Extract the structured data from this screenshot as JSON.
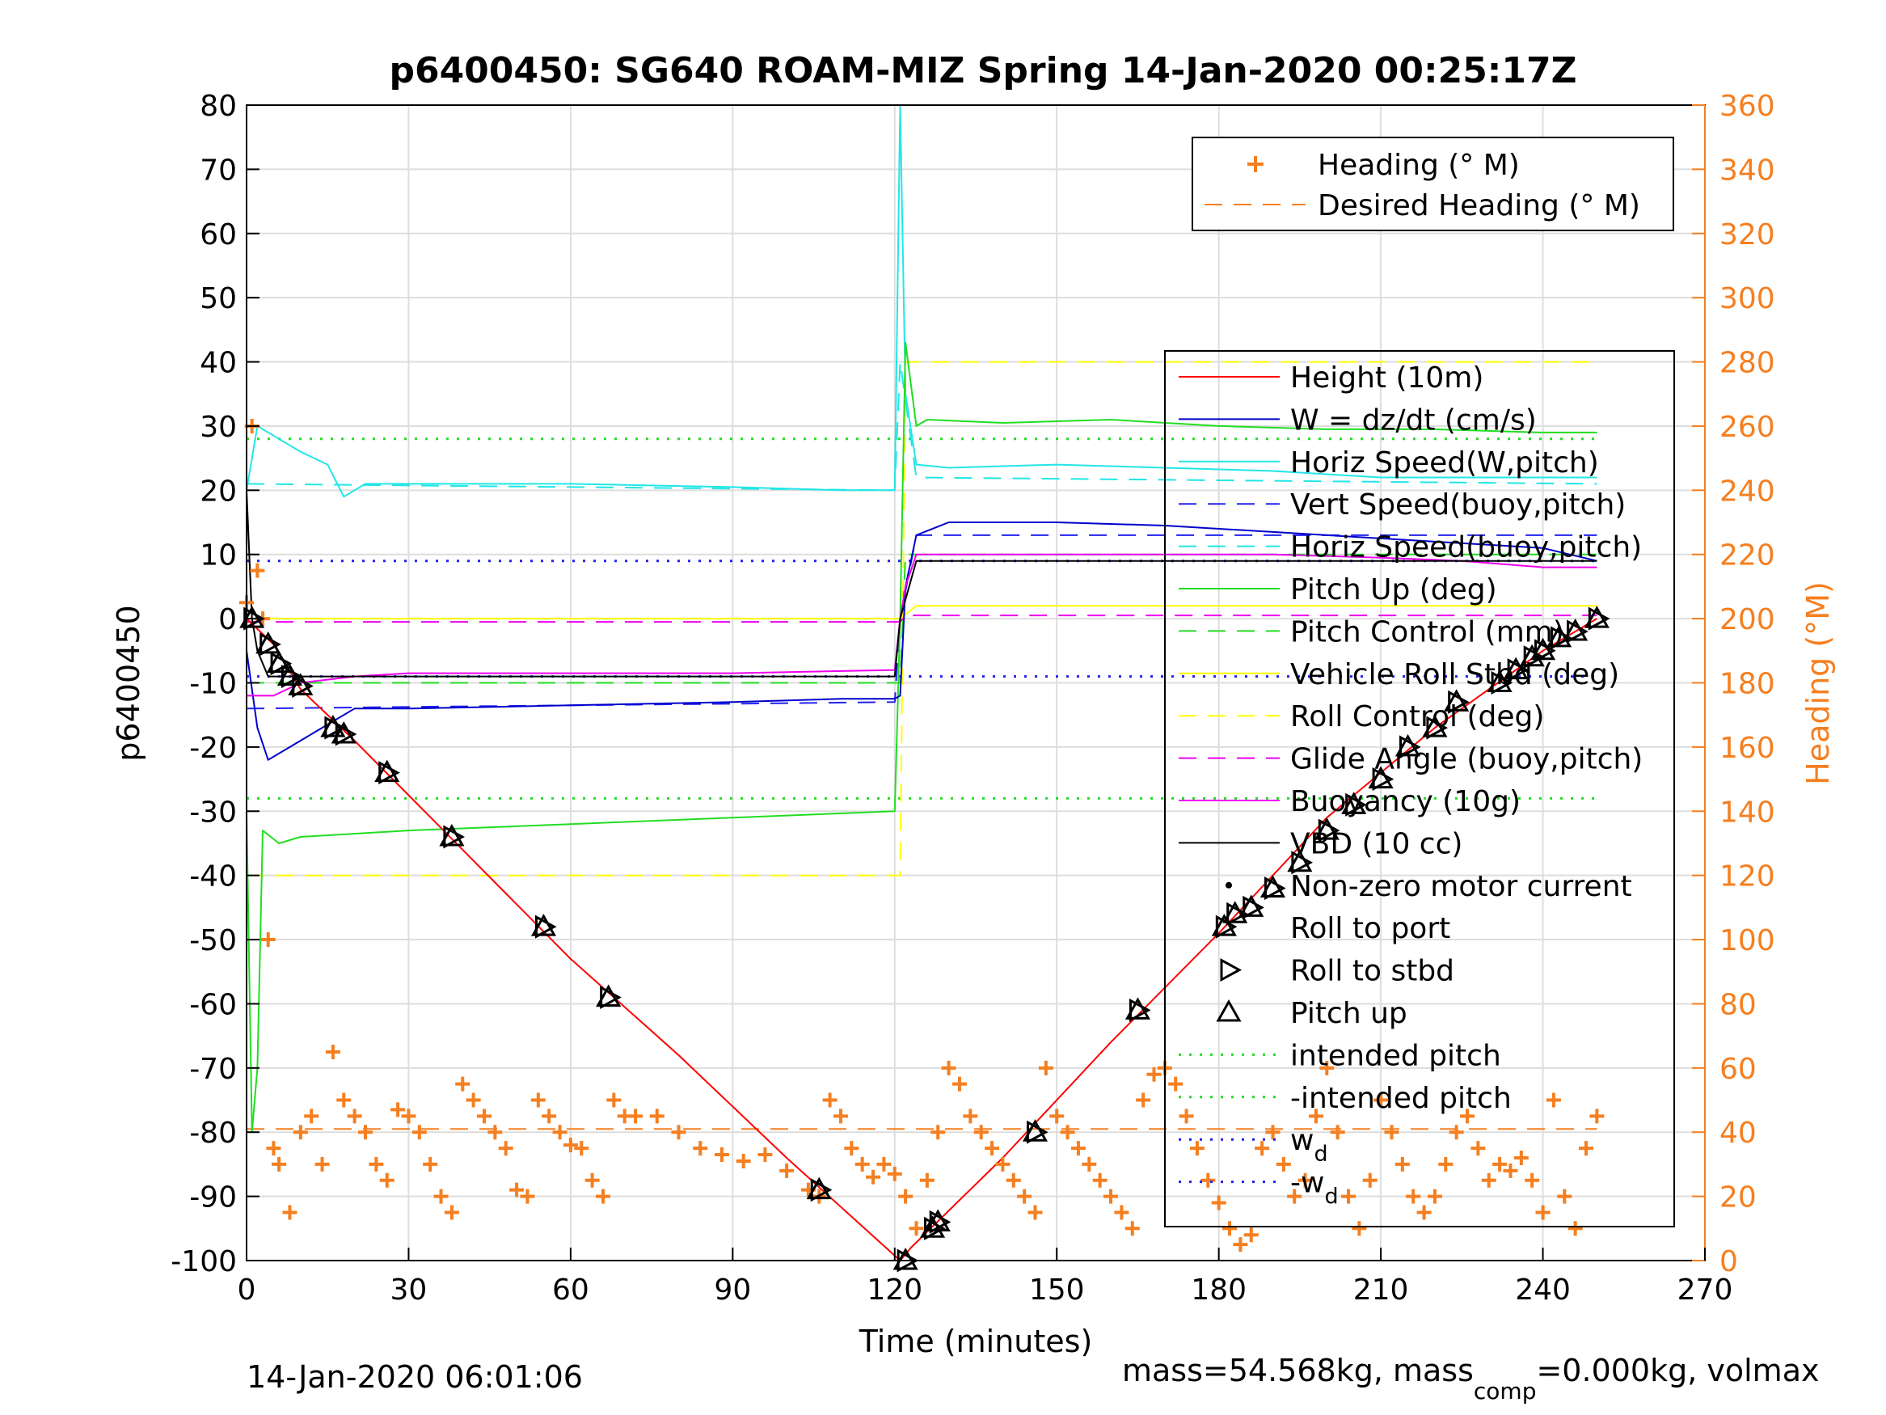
{
  "chart_data": {
    "type": "line",
    "title": "p6400450: SG640 ROAM-MIZ Spring 14-Jan-2020 00:25:17Z",
    "xlabel": "Time (minutes)",
    "ylabel": "p6400450",
    "y2label": "Heading (°M)",
    "xlim": [
      0,
      270
    ],
    "ylim": [
      -100,
      80
    ],
    "y2lim": [
      0,
      360
    ],
    "xticks": [
      0,
      30,
      60,
      90,
      120,
      150,
      180,
      210,
      240,
      270
    ],
    "yticks": [
      80,
      70,
      60,
      50,
      40,
      30,
      20,
      10,
      0,
      -10,
      -20,
      -30,
      -40,
      -50,
      -60,
      -70,
      -80,
      -90,
      -100
    ],
    "y2ticks": [
      360,
      340,
      320,
      300,
      280,
      260,
      240,
      220,
      200,
      180,
      160,
      140,
      120,
      100,
      80,
      60,
      40,
      20,
      0
    ],
    "grid": true,
    "colors": {
      "heading": "#f57f20",
      "height": "#ff0000",
      "w": "#0000cc",
      "hspeed": "#22e6e6",
      "pitch": "#22dd22",
      "roll": "#ffff00",
      "glide": "#ee00ee",
      "vbd": "#000000"
    },
    "series": [
      {
        "name": "Height (10m)",
        "x": [
          0,
          5,
          10,
          20,
          40,
          60,
          80,
          100,
          121,
          123,
          140,
          160,
          180,
          200,
          220,
          240,
          250
        ],
        "y": [
          0,
          -4,
          -11,
          -19,
          -36,
          -53,
          -68,
          -84,
          -100,
          -98,
          -84,
          -66,
          -49,
          -31,
          -17,
          -5,
          0
        ]
      },
      {
        "name": "W = dz/dt (cm/s)",
        "x": [
          0,
          2,
          4,
          8,
          12,
          20,
          30,
          60,
          90,
          110,
          120,
          121,
          122,
          124,
          130,
          150,
          170,
          190,
          210,
          240,
          250
        ],
        "y": [
          -5,
          -17,
          -22,
          -20,
          -18,
          -14,
          -14,
          -13.5,
          -13,
          -12.5,
          -12.5,
          -12,
          5,
          13,
          15,
          15,
          14.5,
          13.5,
          12.5,
          11,
          9
        ]
      },
      {
        "name": "Horiz Speed(W,pitch)",
        "x": [
          0,
          2,
          6,
          10,
          15,
          18,
          22,
          30,
          60,
          90,
          110,
          120,
          121,
          122,
          124,
          130,
          150,
          170,
          190,
          210,
          240,
          250
        ],
        "y": [
          20,
          30,
          28,
          26,
          24,
          19,
          21,
          21,
          21,
          20.5,
          20,
          20,
          80,
          35,
          24,
          23.5,
          24,
          23.5,
          23,
          22,
          22,
          22
        ]
      },
      {
        "name": "Vert Speed(buoy,pitch)",
        "x": [
          0,
          120,
          121,
          124,
          250
        ],
        "y": [
          -14,
          -13,
          0,
          13,
          13
        ]
      },
      {
        "name": "Horiz Speed(buoy,pitch)",
        "x": [
          0,
          120,
          121,
          124,
          250
        ],
        "y": [
          21,
          20,
          40,
          22,
          21
        ]
      },
      {
        "name": "Pitch Up (deg)",
        "x": [
          0,
          1,
          2,
          3,
          6,
          10,
          30,
          60,
          90,
          120,
          121,
          122,
          124,
          126,
          140,
          160,
          180,
          200,
          220,
          240,
          250
        ],
        "y": [
          -30,
          -80,
          -70,
          -33,
          -35,
          -34,
          -33,
          -32,
          -31,
          -30,
          0,
          43,
          30,
          31,
          30.5,
          31,
          30,
          29.5,
          29.5,
          29,
          29
        ]
      },
      {
        "name": "Pitch Control (mm)",
        "x": [
          0,
          121,
          122,
          250
        ],
        "y": [
          -10,
          -10,
          10,
          10
        ]
      },
      {
        "name": "Vehicle Roll Stbd (deg)",
        "x": [
          0,
          60,
          120,
          121,
          124,
          250
        ],
        "y": [
          0,
          0,
          0,
          0,
          2,
          2
        ]
      },
      {
        "name": "Roll Control (deg)",
        "x": [
          0,
          121,
          122,
          250
        ],
        "y": [
          -40,
          -40,
          40,
          40
        ]
      },
      {
        "name": "Glide Angle (buoy,pitch)",
        "x": [
          0,
          121,
          122,
          250
        ],
        "y": [
          -0.5,
          -0.5,
          0.5,
          0.5
        ]
      },
      {
        "name": "Buoyancy (10g)",
        "x": [
          0,
          5,
          10,
          20,
          30,
          60,
          90,
          120,
          121,
          122,
          124,
          130,
          150,
          170,
          190,
          210,
          225,
          240,
          250
        ],
        "y": [
          -12,
          -12,
          -10,
          -9,
          -8.5,
          -8.5,
          -8.5,
          -8,
          0,
          5,
          10,
          10,
          10,
          10,
          10,
          9.5,
          9,
          8,
          8
        ]
      },
      {
        "name": "VBD (10 cc)",
        "x": [
          0,
          1,
          2,
          4,
          10,
          120,
          121,
          124,
          250
        ],
        "y": [
          20,
          0,
          -5,
          -9,
          -9,
          -9,
          0,
          9,
          9
        ]
      },
      {
        "name": "Non-zero motor current",
        "x": [],
        "y": []
      },
      {
        "name": "Roll to port",
        "x": [],
        "y": []
      },
      {
        "name": "Roll to stbd",
        "x": [
          1,
          4,
          6,
          8,
          10,
          16,
          18,
          26,
          38,
          55,
          67,
          106,
          122,
          127,
          128,
          146,
          165,
          181,
          183,
          186,
          190,
          195,
          200,
          205,
          210,
          215,
          220,
          224,
          232,
          235,
          238,
          240,
          243,
          246,
          250
        ],
        "y": [
          0,
          -4,
          -7,
          -9,
          -10.5,
          -17,
          -18,
          -24,
          -34,
          -48,
          -59,
          -89,
          -100,
          -95,
          -94,
          -80,
          -61,
          -48,
          -46,
          -45,
          -42,
          -38,
          -33,
          -29,
          -25,
          -20,
          -17,
          -13,
          -10,
          -8,
          -6,
          -5,
          -3,
          -2,
          0
        ]
      },
      {
        "name": "Pitch up",
        "x": [
          1,
          4,
          6,
          8,
          10,
          16,
          18,
          26,
          38,
          55,
          67,
          106,
          122,
          127,
          128,
          146,
          165,
          181,
          183,
          186,
          190,
          195,
          200,
          205,
          210,
          215,
          220,
          224,
          232,
          235,
          238,
          240,
          243,
          246,
          250
        ],
        "y": [
          0,
          -4,
          -7,
          -9,
          -10.5,
          -17,
          -18,
          -24,
          -34,
          -48,
          -59,
          -89,
          -100,
          -95,
          -94,
          -80,
          -61,
          -48,
          -46,
          -45,
          -42,
          -38,
          -33,
          -29,
          -25,
          -20,
          -17,
          -13,
          -10,
          -8,
          -6,
          -5,
          -3,
          -2,
          0
        ]
      },
      {
        "name": "intended pitch",
        "x": [
          0,
          250
        ],
        "y": [
          28,
          28
        ]
      },
      {
        "name": "-intended pitch",
        "x": [
          0,
          250
        ],
        "y": [
          -28,
          -28
        ]
      },
      {
        "name": "w_d",
        "x": [
          0,
          250
        ],
        "y": [
          9,
          9
        ]
      },
      {
        "name": "-w_d",
        "x": [
          0,
          250
        ],
        "y": [
          -9,
          -9
        ]
      },
      {
        "name": "Heading (° M)",
        "axis": "right",
        "x": [
          0,
          1,
          2,
          3,
          4,
          5,
          6,
          8,
          10,
          12,
          14,
          16,
          18,
          20,
          22,
          24,
          26,
          28,
          30,
          32,
          34,
          36,
          38,
          40,
          42,
          44,
          46,
          48,
          50,
          52,
          54,
          56,
          58,
          60,
          62,
          64,
          66,
          68,
          70,
          72,
          76,
          80,
          84,
          88,
          92,
          96,
          100,
          104,
          106,
          108,
          110,
          112,
          114,
          116,
          118,
          120,
          122,
          124,
          126,
          128,
          130,
          132,
          134,
          136,
          138,
          140,
          142,
          144,
          146,
          148,
          150,
          152,
          154,
          156,
          158,
          160,
          162,
          164,
          166,
          168,
          170,
          172,
          174,
          176,
          178,
          180,
          182,
          184,
          186,
          188,
          190,
          192,
          194,
          196,
          198,
          200,
          202,
          204,
          206,
          208,
          210,
          212,
          214,
          216,
          218,
          220,
          222,
          224,
          226,
          228,
          230,
          232,
          234,
          236,
          238,
          240,
          242,
          244,
          246,
          248,
          250
        ],
        "y": [
          205,
          260,
          215,
          200,
          100,
          35,
          30,
          15,
          40,
          45,
          30,
          65,
          50,
          45,
          40,
          30,
          25,
          47,
          45,
          40,
          30,
          20,
          15,
          55,
          50,
          45,
          40,
          35,
          22,
          20,
          50,
          45,
          40,
          36,
          35,
          25,
          20,
          50,
          45,
          45,
          45,
          40,
          35,
          33,
          31,
          33,
          28,
          22,
          20,
          50,
          45,
          35,
          30,
          26,
          30,
          27,
          20,
          10,
          25,
          40,
          60,
          55,
          45,
          40,
          35,
          30,
          25,
          20,
          15,
          60,
          45,
          40,
          35,
          30,
          25,
          20,
          15,
          10,
          50,
          58,
          60,
          55,
          45,
          35,
          25,
          18,
          10,
          5,
          8,
          35,
          40,
          30,
          20,
          25,
          45,
          60,
          40,
          20,
          10,
          25,
          50,
          40,
          30,
          20,
          15,
          20,
          30,
          40,
          45,
          35,
          25,
          30,
          28,
          32,
          25,
          15,
          50,
          20,
          10,
          35,
          45
        ]
      },
      {
        "name": "Desired Heading (° M)",
        "axis": "right",
        "x": [
          0,
          250
        ],
        "y": [
          41,
          41
        ]
      }
    ],
    "legend": {
      "top_right": [
        "Heading (° M)",
        "Desired Heading (° M)"
      ],
      "main": [
        "Height (10m)",
        "W = dz/dt (cm/s)",
        "Horiz Speed(W,pitch)",
        "Vert Speed(buoy,pitch)",
        "Horiz Speed(buoy,pitch)",
        "Pitch Up (deg)",
        "Pitch Control (mm)",
        "Vehicle Roll Stbd (deg)",
        "Roll Control (deg)",
        "Glide Angle (buoy,pitch)",
        "Buoyancy (10g)",
        "VBD (10 cc)",
        "Non-zero motor current",
        "Roll to port",
        "Roll to stbd",
        "Pitch up",
        "intended pitch",
        "-intended pitch",
        "w",
        "-w"
      ],
      "main_subscripts": {
        "w": "d",
        "-w": "d"
      },
      "placement": "right"
    }
  },
  "footer": {
    "timestamp": "14-Jan-2020 06:01:06",
    "mass_text": "mass=54.568kg, mass",
    "mass_sub": "comp",
    "mass_rest": "=0.000kg, volmax"
  }
}
